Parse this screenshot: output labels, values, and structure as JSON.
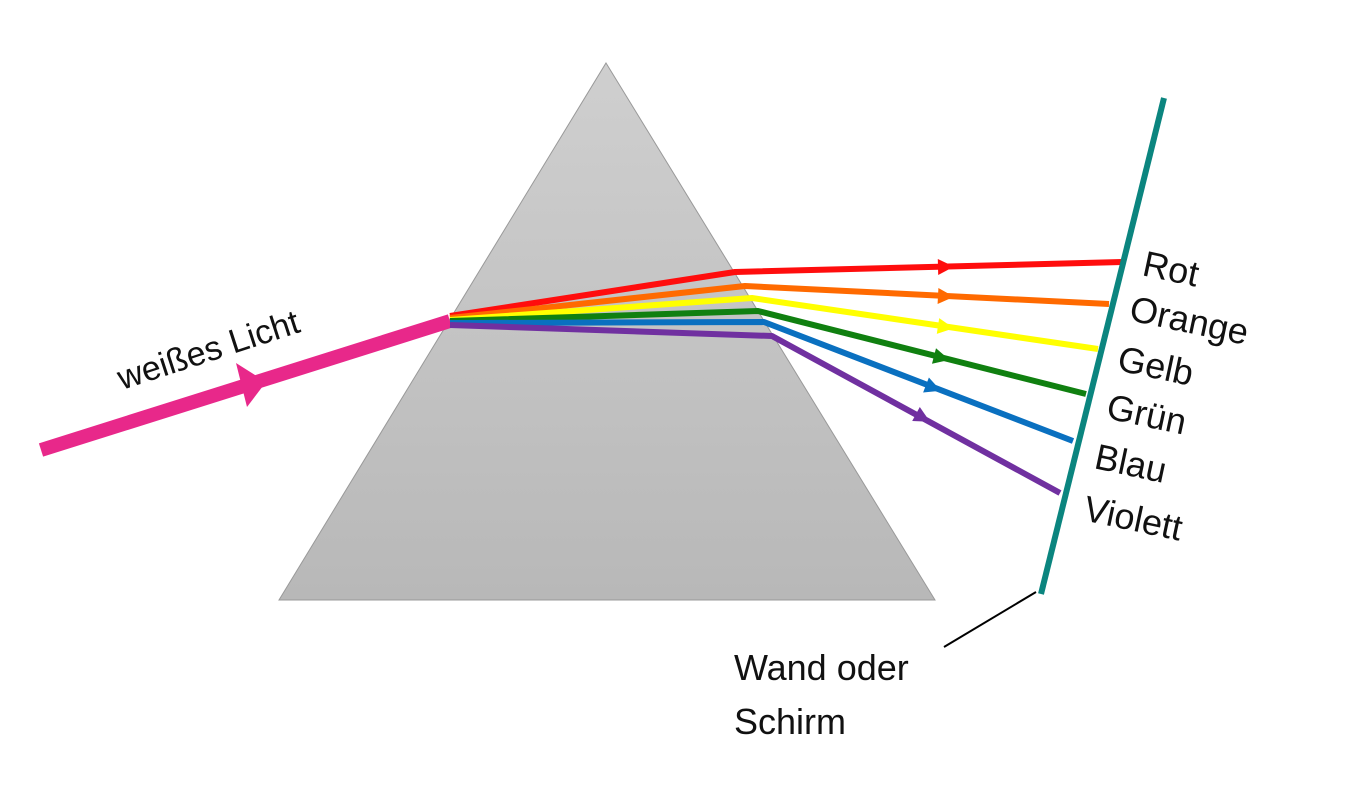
{
  "diagram": {
    "incoming_beam": {
      "label": "weißes Licht",
      "color": "#e8288a"
    },
    "prism": {
      "color_top": "#cfcfcf",
      "color_bottom": "#b8b8b8",
      "edge_color": "#999999"
    },
    "screen": {
      "label_line1": "Wand oder",
      "label_line2": "Schirm",
      "color": "#0b857f"
    },
    "spectrum": [
      {
        "name": "Rot",
        "color": "#ff0d0d"
      },
      {
        "name": "Orange",
        "color": "#ff6a00"
      },
      {
        "name": "Gelb",
        "color": "#ffff00"
      },
      {
        "name": "Grün",
        "color": "#108010"
      },
      {
        "name": "Blau",
        "color": "#0a70c0"
      },
      {
        "name": "Violett",
        "color": "#7030a0"
      }
    ]
  }
}
